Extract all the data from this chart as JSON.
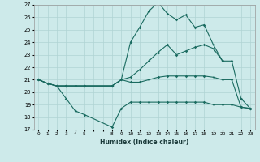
{
  "title": "",
  "xlabel": "Humidex (Indice chaleur)",
  "background_color": "#cdeaea",
  "grid_color": "#b0d4d4",
  "line_color": "#1a6b60",
  "ylim": [
    17,
    27
  ],
  "yticks": [
    17,
    18,
    19,
    20,
    21,
    22,
    23,
    24,
    25,
    26,
    27
  ],
  "xlim": [
    -0.5,
    23.5
  ],
  "series": [
    {
      "x": [
        0,
        1,
        2,
        3,
        4,
        5,
        8,
        9,
        10,
        11,
        12,
        13,
        14,
        15,
        16,
        17,
        18,
        19,
        20
      ],
      "y": [
        21,
        20.7,
        20.5,
        20.5,
        20.5,
        20.5,
        20.5,
        21.0,
        24.0,
        25.2,
        26.5,
        27.2,
        26.3,
        25.8,
        26.2,
        25.2,
        25.4,
        23.8,
        22.5
      ]
    },
    {
      "x": [
        0,
        1,
        2,
        3,
        4,
        5,
        8,
        9,
        10,
        11,
        12,
        13,
        14,
        15,
        16,
        17,
        18,
        19,
        20,
        21,
        22,
        23
      ],
      "y": [
        21,
        20.7,
        20.5,
        20.5,
        20.5,
        20.5,
        20.5,
        21.0,
        21.2,
        21.8,
        22.5,
        23.2,
        23.8,
        23.0,
        23.3,
        23.6,
        23.8,
        23.5,
        22.5,
        22.5,
        19.5,
        18.7
      ]
    },
    {
      "x": [
        0,
        1,
        2,
        3,
        4,
        5,
        8,
        9,
        10,
        11,
        12,
        13,
        14,
        15,
        16,
        17,
        18,
        19,
        20,
        21,
        22,
        23
      ],
      "y": [
        21,
        20.7,
        20.5,
        20.5,
        20.5,
        20.5,
        20.5,
        21.0,
        20.8,
        20.8,
        21.0,
        21.2,
        21.3,
        21.3,
        21.3,
        21.3,
        21.3,
        21.2,
        21.0,
        21.0,
        18.8,
        18.7
      ]
    },
    {
      "x": [
        0,
        1,
        2,
        3,
        4,
        5,
        8,
        9,
        10,
        11,
        12,
        13,
        14,
        15,
        16,
        17,
        18,
        19,
        20,
        21,
        22,
        23
      ],
      "y": [
        21,
        20.7,
        20.5,
        19.5,
        18.5,
        18.2,
        17.2,
        18.7,
        19.2,
        19.2,
        19.2,
        19.2,
        19.2,
        19.2,
        19.2,
        19.2,
        19.2,
        19.0,
        19.0,
        19.0,
        18.8,
        18.7
      ]
    }
  ]
}
